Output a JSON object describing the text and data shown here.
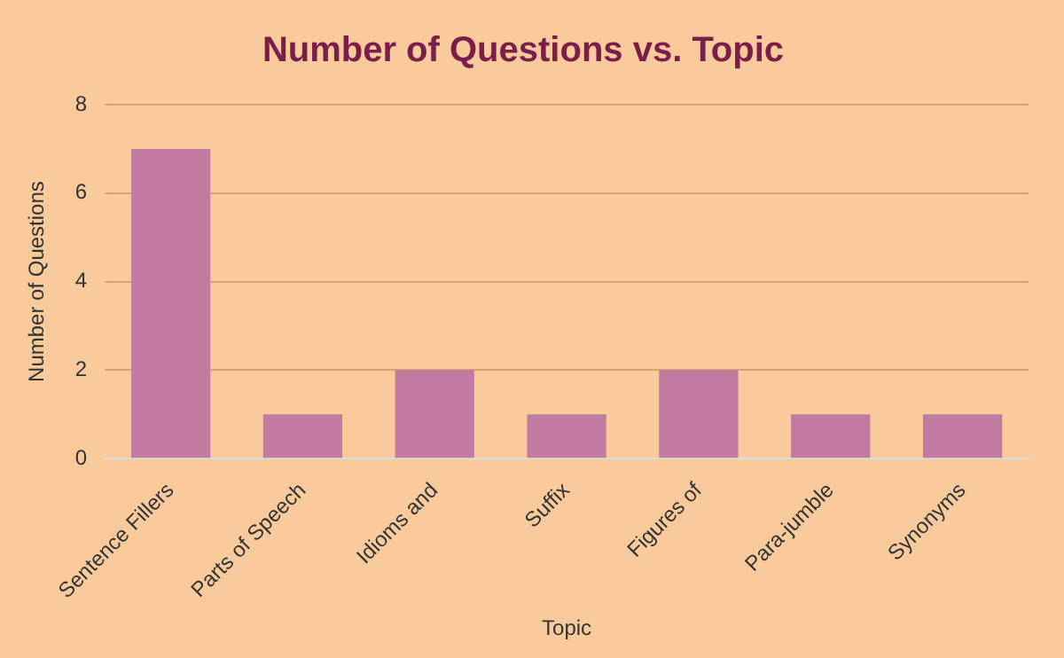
{
  "chart_data": {
    "type": "bar",
    "title": "Number of Questions vs. Topic",
    "xlabel": "Topic",
    "ylabel": "Number of Questions",
    "categories": [
      "Sentence Fillers",
      "Parts of Speech",
      "Idioms and",
      "Suffix",
      "Figures of",
      "Para-jumble",
      "Synonyms"
    ],
    "values": [
      7,
      1,
      2,
      1,
      2,
      1,
      1
    ],
    "color": "#c27ba0",
    "ylim": [
      0,
      8
    ],
    "yticks": [
      0,
      2,
      4,
      6,
      8
    ],
    "grid": "y",
    "legend": false
  }
}
